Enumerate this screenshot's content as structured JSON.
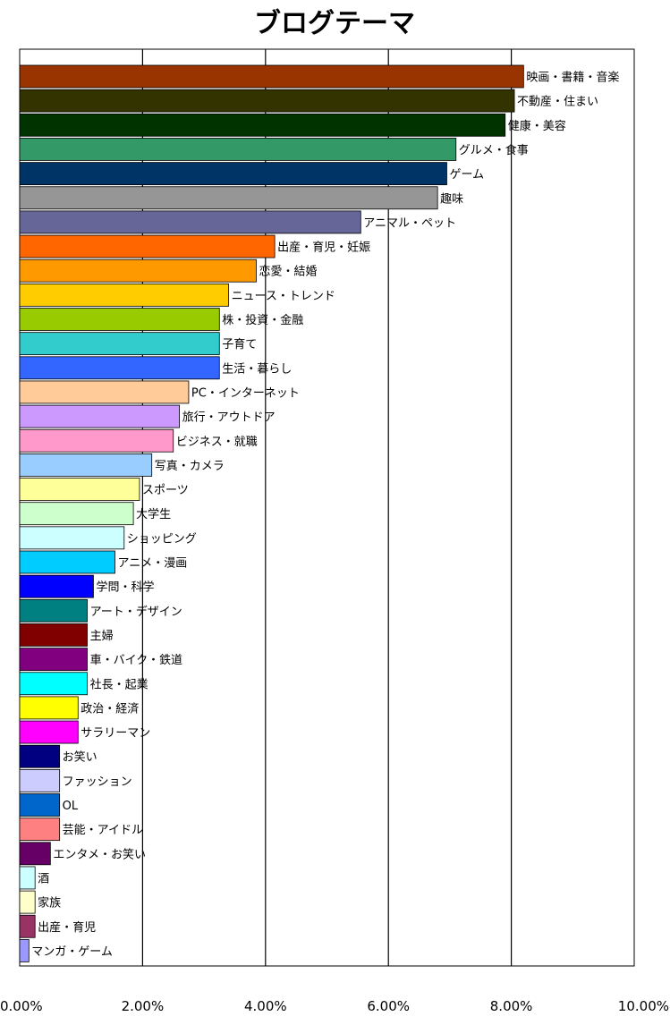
{
  "chart_data": {
    "type": "bar",
    "orientation": "horizontal",
    "title": "ブログテーマ",
    "xlabel": "",
    "ylabel": "",
    "xlim": [
      0,
      10
    ],
    "x_ticks": [
      "0.00%",
      "2.00%",
      "4.00%",
      "6.00%",
      "8.00%",
      "10.00%"
    ],
    "grid": true,
    "legend": "none",
    "categories": [
      "映画・書籍・音楽",
      "不動産・住まい",
      "健康・美容",
      "グルメ・食事",
      "ゲーム",
      "趣味",
      "アニマル・ペット",
      "出産・育児・妊娠",
      "恋愛・結婚",
      "ニュース・トレンド",
      "株・投資・金融",
      "子育て",
      "生活・暮らし",
      "PC・インターネット",
      "旅行・アウトドア",
      "ビジネス・就職",
      "写真・カメラ",
      "スポーツ",
      "大学生",
      "ショッピング",
      "アニメ・漫画",
      "学問・科学",
      "アート・デザイン",
      "主婦",
      "車・バイク・鉄道",
      "社長・起業",
      "政治・経済",
      "サラリーマン",
      "お笑い",
      "ファッション",
      "OL",
      "芸能・アイドル",
      "エンタメ・お笑い",
      "酒",
      "家族",
      "出産・育児",
      "マンガ・ゲーム"
    ],
    "values": [
      8.2,
      8.05,
      7.9,
      7.1,
      6.95,
      6.8,
      5.55,
      4.15,
      3.85,
      3.4,
      3.25,
      3.25,
      3.25,
      2.75,
      2.6,
      2.5,
      2.15,
      1.95,
      1.85,
      1.7,
      1.55,
      1.2,
      1.1,
      1.1,
      1.1,
      1.1,
      0.95,
      0.95,
      0.65,
      0.65,
      0.65,
      0.65,
      0.5,
      0.25,
      0.25,
      0.25,
      0.15
    ],
    "colors": [
      "#993300",
      "#333300",
      "#003300",
      "#339966",
      "#003366",
      "#969696",
      "#666699",
      "#FF6600",
      "#FF9900",
      "#FFCC00",
      "#99CC00",
      "#33CCCC",
      "#3366FF",
      "#FFCC99",
      "#CC99FF",
      "#FF99CC",
      "#99CCFF",
      "#FFFF99",
      "#CCFFCC",
      "#CCFFFF",
      "#00CCFF",
      "#0000FF",
      "#008080",
      "#800000",
      "#800080",
      "#00FFFF",
      "#FFFF00",
      "#FF00FF",
      "#000080",
      "#CCCCFF",
      "#0066CC",
      "#FF8080",
      "#660066",
      "#CCFFFF",
      "#FFFFCC",
      "#993366",
      "#9999FF"
    ]
  }
}
